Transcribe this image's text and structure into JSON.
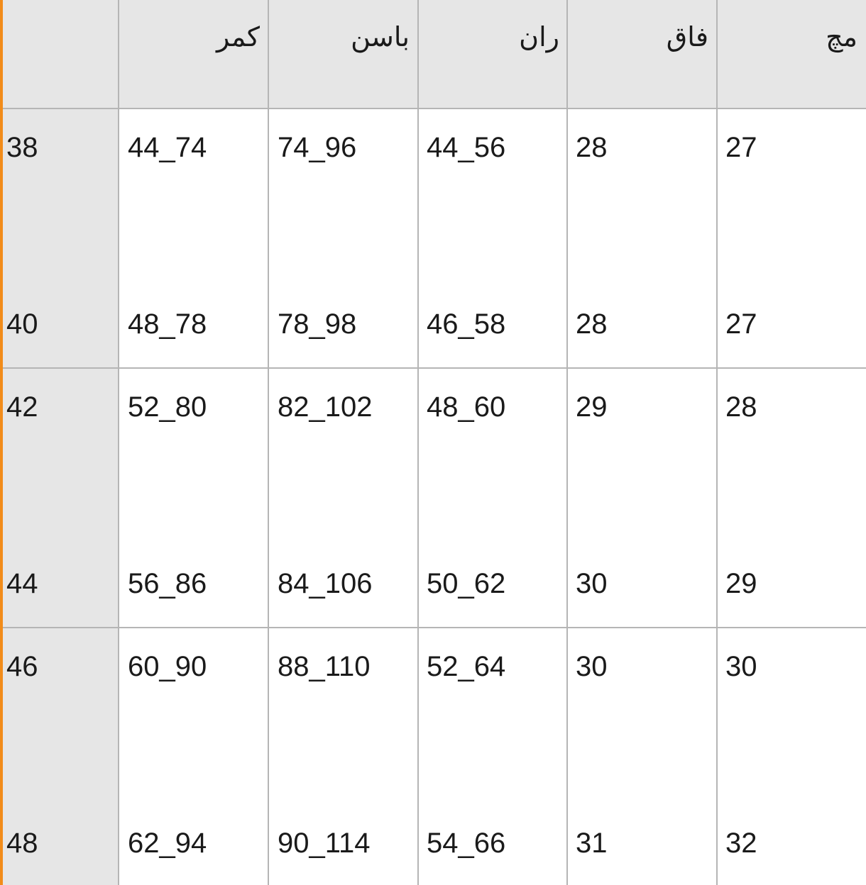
{
  "header": {
    "columns": [
      "",
      "کمر",
      "باسن",
      "ران",
      "فاق",
      "مچ"
    ]
  },
  "rows": [
    {
      "size": "38",
      "waist": "44_74",
      "hip": "74_96",
      "thigh": "44_56",
      "rise": "28",
      "ankle": "27"
    },
    {
      "size": "40",
      "waist": "48_78",
      "hip": "78_98",
      "thigh": "46_58",
      "rise": "28",
      "ankle": "27"
    },
    {
      "size": "42",
      "waist": "52_80",
      "hip": "82_102",
      "thigh": "48_60",
      "rise": "29",
      "ankle": "28"
    },
    {
      "size": "44",
      "waist": "56_86",
      "hip": "84_106",
      "thigh": "50_62",
      "rise": "30",
      "ankle": "29"
    },
    {
      "size": "46",
      "waist": "60_90",
      "hip": "88_110",
      "thigh": "52_64",
      "rise": "30",
      "ankle": "30"
    },
    {
      "size": "48",
      "waist": "62_94",
      "hip": "90_114",
      "thigh": "54_66",
      "rise": "31",
      "ankle": "32"
    }
  ],
  "colors": {
    "accent": "#f28c1a",
    "header_bg": "#e6e6e6",
    "grid": "#b5b5b5"
  }
}
